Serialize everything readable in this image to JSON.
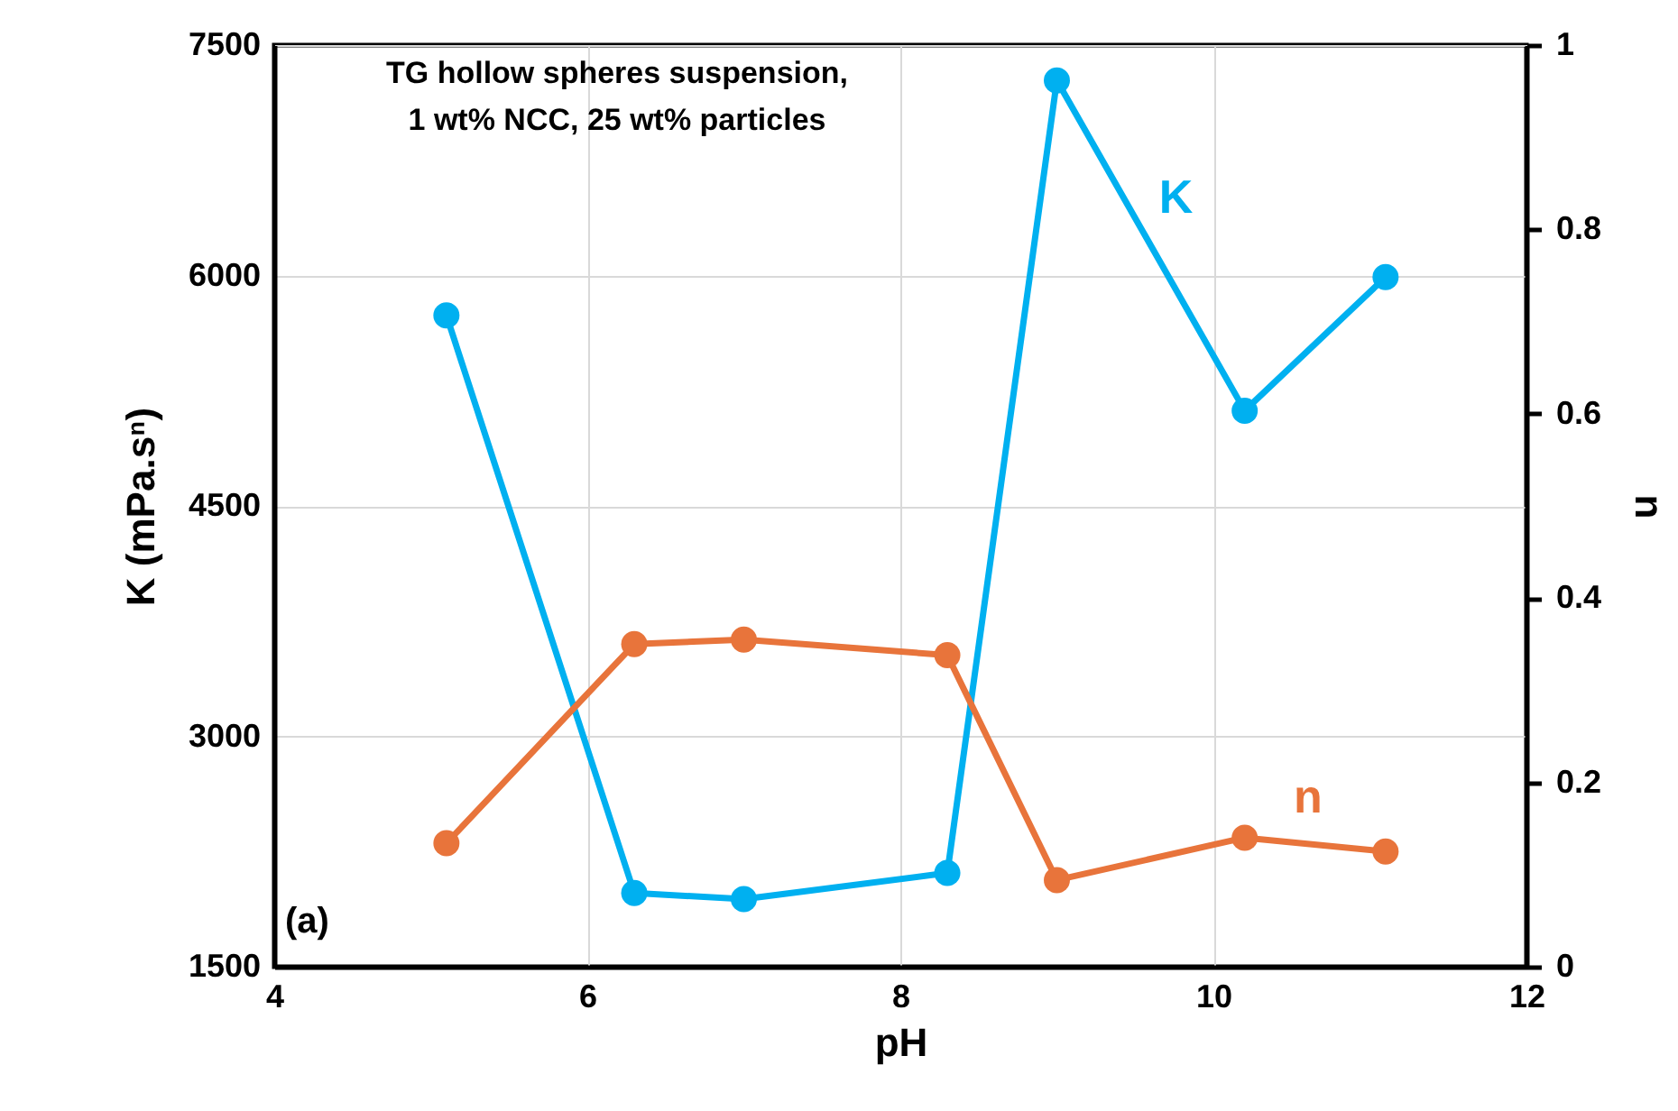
{
  "chart_data": {
    "type": "line",
    "xlabel": "pH",
    "ylabel": "K (mPa.sⁿ)",
    "y2label": "n",
    "annotations": [
      "TG hollow spheres suspension,\n1 wt% NCC, 25 wt% particles",
      "(a)"
    ],
    "xlim": [
      4,
      12
    ],
    "xticks": [
      4,
      6,
      8,
      10,
      12
    ],
    "ylim": [
      1500,
      7500
    ],
    "yticks": [
      1500,
      3000,
      4500,
      6000,
      7500
    ],
    "y2lim": [
      0,
      1
    ],
    "y2ticks": [
      0,
      0.2,
      0.4,
      0.6,
      0.8,
      1
    ],
    "grid": true,
    "legend": false,
    "marker": "circle",
    "line_style": "solid",
    "series": [
      {
        "name": "K",
        "color": "#00b0f0",
        "x": [
          5.1,
          6.3,
          7.0,
          8.3,
          9.0,
          10.2,
          11.1
        ],
        "values": [
          5740,
          1980,
          1940,
          2110,
          7270,
          5120,
          5990
        ]
      },
      {
        "name": "n",
        "color": "#e8743b",
        "axis": "y2",
        "x": [
          5.1,
          6.3,
          7.0,
          8.3,
          9.0,
          10.2,
          11.1
        ],
        "values": [
          0.134,
          0.35,
          0.355,
          0.338,
          0.094,
          0.14,
          0.125
        ]
      }
    ]
  }
}
